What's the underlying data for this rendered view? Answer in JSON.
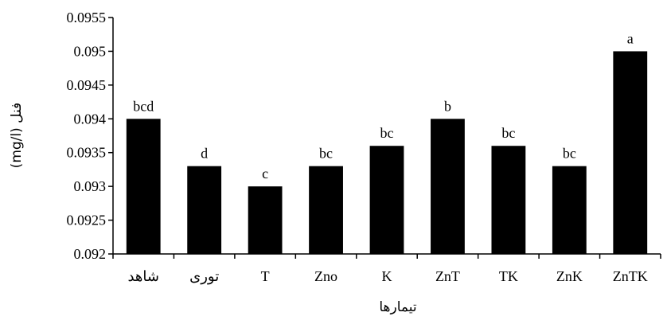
{
  "chart_data": {
    "type": "bar",
    "categories": [
      "شاهد",
      "توری",
      "T",
      "Zno",
      "K",
      "ZnT",
      "TK",
      "ZnK",
      "ZnTK"
    ],
    "values": [
      0.094,
      0.0933,
      0.093,
      0.0933,
      0.0936,
      0.094,
      0.0936,
      0.0933,
      0.095
    ],
    "data_labels": [
      "bcd",
      "d",
      "c",
      "bc",
      "bc",
      "b",
      "bc",
      "bc",
      "a"
    ],
    "yticks": [
      "0.092",
      "0.0925",
      "0.093",
      "0.0935",
      "0.094",
      "0.0945",
      "0.095",
      "0.0955"
    ],
    "ylim": [
      0.092,
      0.0955
    ],
    "xlabel": "تیمارها",
    "ylabel": "فنل (mg/l)",
    "grid": false,
    "bar_color": "#000000"
  }
}
